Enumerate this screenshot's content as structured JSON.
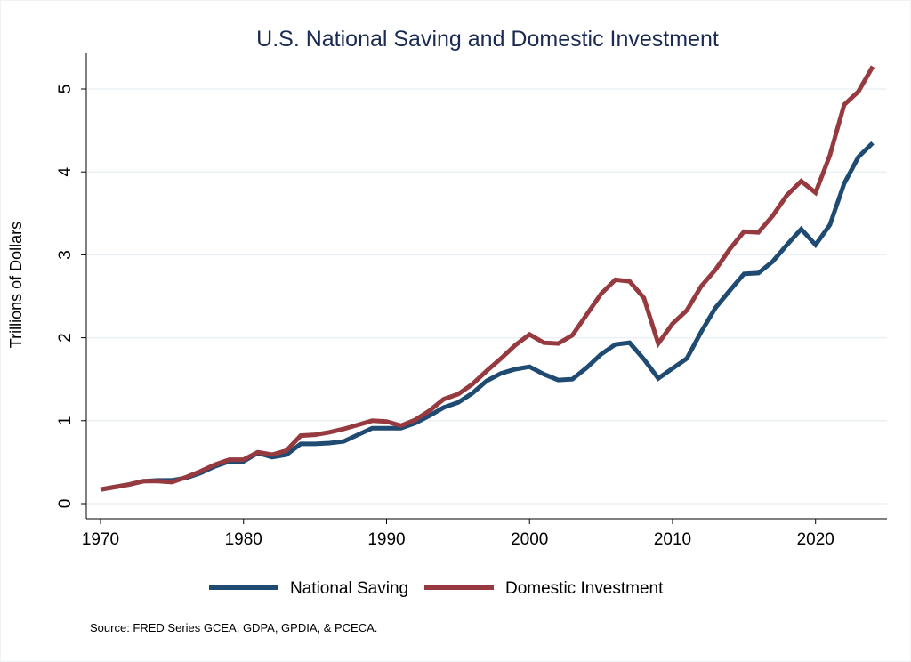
{
  "chart_data": {
    "type": "line",
    "title": "U.S. National Saving and Domestic Investment",
    "xlabel": "",
    "ylabel": "Trillions of Dollars",
    "xlim": [
      1970,
      2024
    ],
    "ylim": [
      0,
      5
    ],
    "x_ticks": [
      1970,
      1980,
      1990,
      2000,
      2010,
      2020
    ],
    "y_ticks": [
      0,
      1,
      2,
      3,
      4,
      5
    ],
    "grid": "horizontal",
    "legend_position": "bottom",
    "note": "Source: FRED Series GCEA, GDPA, GPDIA, & PCECA.",
    "x": [
      1970,
      1971,
      1972,
      1973,
      1974,
      1975,
      1976,
      1977,
      1978,
      1979,
      1980,
      1981,
      1982,
      1983,
      1984,
      1985,
      1986,
      1987,
      1988,
      1989,
      1990,
      1991,
      1992,
      1993,
      1994,
      1995,
      1996,
      1997,
      1998,
      1999,
      2000,
      2001,
      2002,
      2003,
      2004,
      2005,
      2006,
      2007,
      2008,
      2009,
      2010,
      2011,
      2012,
      2013,
      2014,
      2015,
      2016,
      2017,
      2018,
      2019,
      2020,
      2021,
      2022,
      2023,
      2024
    ],
    "series": [
      {
        "name": "National Saving",
        "color": "#1f4b73",
        "values": [
          0.17,
          0.2,
          0.23,
          0.27,
          0.28,
          0.28,
          0.31,
          0.37,
          0.45,
          0.51,
          0.51,
          0.61,
          0.56,
          0.59,
          0.72,
          0.72,
          0.73,
          0.75,
          0.83,
          0.91,
          0.91,
          0.91,
          0.97,
          1.06,
          1.16,
          1.22,
          1.33,
          1.48,
          1.57,
          1.62,
          1.65,
          1.56,
          1.49,
          1.5,
          1.64,
          1.8,
          1.92,
          1.94,
          1.74,
          1.51,
          1.63,
          1.75,
          2.07,
          2.36,
          2.57,
          2.77,
          2.78,
          2.92,
          3.12,
          3.31,
          3.12,
          3.36,
          3.86,
          4.18,
          4.35
        ]
      },
      {
        "name": "Domestic Investment",
        "color": "#963a40",
        "values": [
          0.17,
          0.2,
          0.23,
          0.27,
          0.27,
          0.26,
          0.32,
          0.39,
          0.47,
          0.53,
          0.53,
          0.62,
          0.59,
          0.64,
          0.82,
          0.83,
          0.86,
          0.9,
          0.95,
          1.0,
          0.99,
          0.94,
          1.01,
          1.12,
          1.26,
          1.32,
          1.44,
          1.6,
          1.75,
          1.91,
          2.04,
          1.94,
          1.93,
          2.03,
          2.28,
          2.53,
          2.7,
          2.68,
          2.48,
          1.93,
          2.17,
          2.33,
          2.62,
          2.82,
          3.07,
          3.28,
          3.27,
          3.47,
          3.72,
          3.89,
          3.75,
          4.2,
          4.81,
          4.97,
          5.27
        ]
      }
    ]
  }
}
